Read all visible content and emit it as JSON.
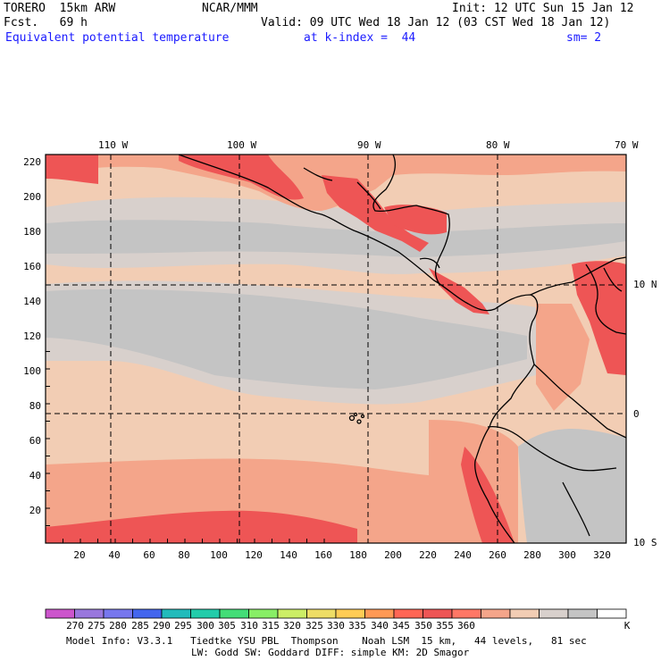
{
  "header": {
    "model": "TORERO  15km ARW",
    "source": "NCAR/MMM",
    "init": "Init: 12 UTC Sun 15 Jan 12",
    "fcst": "Fcst.   69 h",
    "valid": "Valid: 09 UTC Wed 18 Jan 12 (03 CST Wed 18 Jan 12)",
    "field": "Equivalent potential temperature",
    "level": "at k-index =  44",
    "smooth": "sm= 2"
  },
  "axes": {
    "lon_labels": [
      "110 W",
      "100 W",
      "90 W",
      "80 W",
      "70 W"
    ],
    "lat_labels": [
      "10 N",
      "0",
      "10 S"
    ],
    "x_ticks": [
      "20",
      "40",
      "60",
      "80",
      "100",
      "120",
      "140",
      "160",
      "180",
      "200",
      "220",
      "240",
      "260",
      "280",
      "300",
      "320"
    ],
    "y_ticks": [
      "220",
      "200",
      "180",
      "160",
      "140",
      "120",
      "100",
      "80",
      "60",
      "40",
      "20"
    ]
  },
  "colorbar": {
    "labels": [
      "270",
      "275",
      "280",
      "285",
      "290",
      "295",
      "300",
      "305",
      "310",
      "315",
      "320",
      "325",
      "330",
      "335",
      "340",
      "345",
      "350",
      "355",
      "360"
    ],
    "unit": "K",
    "colors": [
      "#cc55cc",
      "#9977dd",
      "#7777ee",
      "#4466ee",
      "#22bbbb",
      "#22ccaa",
      "#44dd77",
      "#88ee66",
      "#ccee66",
      "#eedd66",
      "#ffcc55",
      "#ff9955",
      "#ff6655",
      "#ee5555",
      "#ff7766",
      "#f4a58a",
      "#f2cdb4",
      "#d8d0cc",
      "#c4c4c4",
      "#ffffff"
    ]
  },
  "footer": {
    "line1": "Model Info: V3.3.1   Tiedtke YSU PBL  Thompson    Noah LSM  15 km,   44 levels,   81 sec",
    "line2": "LW: Godd SW: Goddard DIFF: simple KM: 2D Smagor"
  }
}
